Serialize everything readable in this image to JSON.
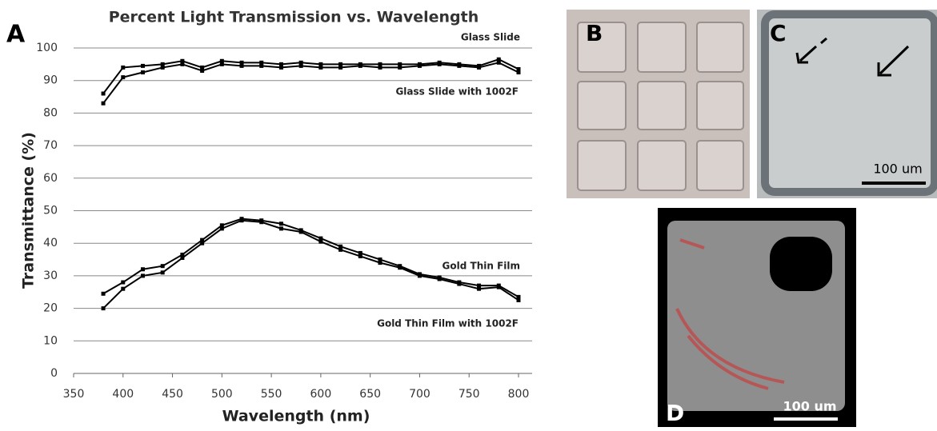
{
  "chart_data": {
    "type": "line",
    "title": "Percent Light Transmission vs. Wavelength",
    "x_label": "Wavelength (nm)",
    "y_label": "Transmittance (%)",
    "panel_label": "A",
    "x": [
      380,
      400,
      420,
      440,
      460,
      480,
      500,
      520,
      540,
      560,
      580,
      600,
      620,
      640,
      660,
      680,
      700,
      720,
      740,
      760,
      780,
      800
    ],
    "series": [
      {
        "name": "Glass Slide",
        "color": "#000000",
        "values": [
          86,
          94,
          94.5,
          95,
          96,
          94,
          96,
          95.5,
          95.5,
          95,
          95.5,
          95,
          95,
          95,
          95,
          95,
          95,
          95.5,
          95,
          94.5,
          96.5,
          93.5
        ]
      },
      {
        "name": "Glass Slide with 1002F",
        "color": "#000000",
        "values": [
          83,
          91,
          92.5,
          94,
          95,
          93,
          95,
          94.5,
          94.5,
          94,
          94.5,
          94,
          94,
          94.5,
          94,
          94,
          94.5,
          95,
          94.5,
          94,
          95.5,
          92.5
        ]
      },
      {
        "name": "Gold Thin Film",
        "color": "#000000",
        "values": [
          24.5,
          28,
          32,
          33,
          36.5,
          41,
          45.5,
          47.5,
          47,
          46,
          44,
          41.5,
          39,
          37,
          35,
          33,
          30.5,
          29.5,
          28,
          27,
          27,
          23.5
        ]
      },
      {
        "name": "Gold Thin Film with 1002F",
        "color": "#000000",
        "values": [
          20,
          26,
          30,
          31,
          35.5,
          40,
          44.5,
          47,
          46.5,
          44.5,
          43.5,
          40.5,
          38,
          36,
          34,
          32.5,
          30,
          29,
          27.5,
          26,
          26.5,
          22.5
        ]
      }
    ],
    "xlim": [
      350,
      800
    ],
    "xticks": [
      350,
      400,
      450,
      500,
      550,
      600,
      650,
      700,
      750,
      800
    ],
    "ylim": [
      0,
      100
    ],
    "yticks": [
      0,
      10,
      20,
      30,
      40,
      50,
      60,
      70,
      80,
      90,
      100
    ],
    "grid": true
  },
  "panels": {
    "b": "B",
    "c": "C",
    "d": "D",
    "scale_c": "100 um",
    "scale_d": "100 um"
  }
}
